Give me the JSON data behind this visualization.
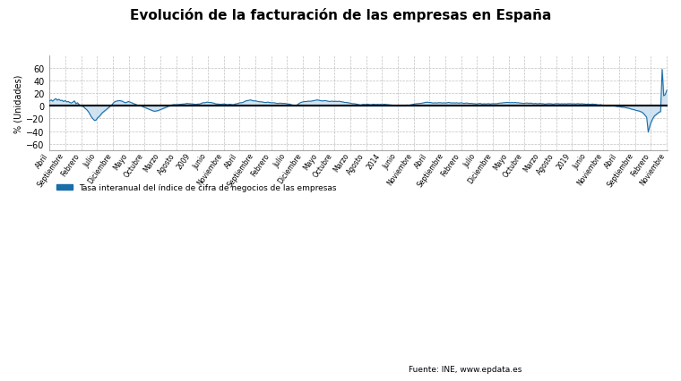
{
  "title": "Evolución de la facturación de las empresas en España",
  "ylabel": "% (Unidades)",
  "legend_label": "Tasa interanual del índice de cifra de negocios de las empresas",
  "source_text": "Fuente: INE, www.epdata.es",
  "line_color": "#1a6ea8",
  "fill_color": "#c8dff0",
  "background_color": "#ffffff",
  "ylim": [
    -70,
    80
  ],
  "yticks": [
    -60,
    -40,
    -20,
    0,
    20,
    40,
    60
  ],
  "tick_labels": [
    "Abril",
    "Septiembre",
    "Febrero",
    "Julio",
    "Diciembre",
    "Mayo",
    "Octubre",
    "Marzo",
    "Agosto",
    "2009",
    "Junio",
    "Noviembre",
    "Abril",
    "Septiembre",
    "Febrero",
    "Julio",
    "Diciembre",
    "Mayo",
    "Octubre",
    "Marzo",
    "Agosto",
    "2014",
    "Junio",
    "Noviembre",
    "Abril",
    "Septiembre",
    "Febrero",
    "Julio",
    "Diciembre",
    "Mayo",
    "Octubre",
    "Marzo",
    "Agosto",
    "2019",
    "Junio",
    "Noviembre",
    "Abril",
    "Septiembre",
    "Febrero",
    "Noviembre"
  ],
  "months_data": [
    8.0,
    9.5,
    7.5,
    10.0,
    11.5,
    9.0,
    10.5,
    8.5,
    9.0,
    7.0,
    8.5,
    6.5,
    7.0,
    5.5,
    4.5,
    6.0,
    8.0,
    3.5,
    5.0,
    2.0,
    1.0,
    -0.5,
    -1.5,
    -4.0,
    -6.0,
    -9.0,
    -13.0,
    -17.5,
    -20.5,
    -23.0,
    -22.5,
    -19.0,
    -17.0,
    -14.0,
    -11.0,
    -9.0,
    -7.0,
    -5.0,
    -3.0,
    -1.0,
    1.0,
    4.0,
    6.5,
    7.5,
    8.0,
    8.5,
    8.0,
    7.5,
    6.0,
    5.0,
    6.0,
    7.0,
    6.0,
    5.0,
    4.0,
    3.0,
    2.0,
    1.0,
    1.0,
    0.5,
    -1.0,
    -2.0,
    -3.0,
    -4.0,
    -5.0,
    -6.0,
    -7.0,
    -8.0,
    -8.5,
    -8.0,
    -7.5,
    -6.5,
    -5.5,
    -4.5,
    -3.5,
    -2.5,
    -1.5,
    -0.5,
    0.5,
    1.5,
    2.0,
    2.0,
    2.0,
    2.0,
    2.5,
    2.5,
    3.0,
    3.0,
    3.5,
    4.0,
    3.5,
    3.5,
    3.0,
    3.0,
    2.5,
    2.5,
    3.0,
    3.0,
    4.0,
    5.0,
    5.0,
    5.5,
    6.0,
    5.5,
    5.5,
    5.0,
    4.5,
    3.5,
    3.0,
    3.0,
    2.5,
    2.5,
    3.0,
    3.0,
    2.5,
    2.0,
    2.5,
    2.5,
    2.0,
    2.0,
    3.0,
    3.5,
    4.0,
    5.0,
    5.0,
    5.5,
    7.0,
    8.0,
    8.5,
    9.0,
    9.5,
    8.5,
    8.0,
    8.0,
    7.5,
    7.0,
    6.5,
    6.5,
    6.0,
    5.5,
    5.5,
    6.0,
    5.5,
    5.0,
    5.0,
    5.0,
    4.5,
    4.0,
    4.0,
    4.5,
    4.0,
    4.0,
    4.0,
    3.5,
    3.0,
    3.0,
    2.0,
    1.5,
    1.0,
    0.5,
    1.5,
    3.5,
    5.0,
    6.0,
    6.5,
    7.0,
    7.0,
    7.5,
    7.5,
    7.5,
    8.0,
    8.5,
    9.0,
    9.5,
    9.0,
    8.5,
    8.0,
    8.0,
    8.5,
    8.0,
    7.5,
    7.0,
    7.5,
    7.5,
    7.0,
    7.5,
    7.0,
    7.5,
    7.0,
    6.5,
    6.0,
    5.5,
    5.5,
    5.0,
    4.5,
    4.0,
    3.5,
    3.5,
    3.0,
    2.5,
    2.0,
    1.5,
    2.0,
    2.5,
    2.0,
    2.5,
    2.5,
    2.0,
    2.0,
    2.5,
    2.5,
    2.0,
    2.5,
    2.0,
    2.5,
    2.0,
    2.5,
    2.5,
    2.0,
    2.0,
    1.5,
    1.5,
    1.0,
    1.0,
    0.5,
    0.0,
    0.5,
    0.5,
    1.0,
    0.5,
    1.0,
    1.5,
    1.0,
    1.5,
    2.0,
    2.5,
    3.0,
    3.5,
    3.5,
    4.0,
    4.0,
    4.5,
    5.0,
    5.5,
    6.0,
    5.5,
    5.5,
    5.0,
    4.5,
    5.0,
    4.5,
    5.0,
    5.0,
    5.0,
    4.5,
    5.0,
    4.5,
    5.0,
    5.5,
    5.0,
    4.5,
    5.0,
    4.5,
    5.0,
    4.5,
    4.5,
    5.0,
    4.5,
    4.0,
    4.5,
    4.5,
    4.0,
    4.0,
    4.0,
    3.5,
    3.5,
    3.0,
    3.5,
    4.0,
    3.5,
    3.0,
    3.5,
    3.0,
    3.5,
    3.5,
    3.0,
    3.5,
    3.5,
    3.5,
    3.5,
    4.0,
    4.5,
    4.5,
    5.0,
    5.0,
    5.5,
    5.5,
    5.5,
    5.0,
    5.5,
    5.0,
    5.5,
    5.0,
    5.0,
    4.5,
    4.5,
    4.0,
    4.0,
    4.5,
    4.5,
    4.0,
    4.5,
    4.0,
    3.5,
    4.0,
    3.5,
    3.5,
    4.0,
    3.5,
    3.5,
    3.0,
    3.0,
    3.5,
    3.5,
    3.5,
    3.0,
    3.0,
    3.5,
    3.5,
    3.5,
    3.0,
    3.5,
    3.0,
    3.5,
    3.0,
    3.5,
    3.5,
    3.5,
    3.0,
    3.5,
    3.0,
    3.5,
    3.5,
    3.0,
    3.5,
    3.0,
    3.0,
    2.5,
    3.0,
    2.5,
    2.5,
    3.0,
    2.5,
    2.5,
    2.0,
    1.5,
    2.0,
    1.5,
    1.0,
    0.5,
    0.0,
    0.5,
    0.0,
    0.5,
    0.5,
    0.0,
    -0.5,
    -1.0,
    -1.0,
    -1.5,
    -2.0,
    -2.0,
    -2.5,
    -3.0,
    -3.5,
    -4.0,
    -5.0,
    -5.5,
    -6.0,
    -7.0,
    -7.5,
    -8.0,
    -9.0,
    -10.0,
    -12.0,
    -15.0,
    -18.0,
    -41.5,
    -32.0,
    -25.0,
    -20.0,
    -16.0,
    -14.0,
    -12.0,
    -10.0,
    -9.0,
    58.0,
    16.0,
    18.0,
    25.0
  ]
}
